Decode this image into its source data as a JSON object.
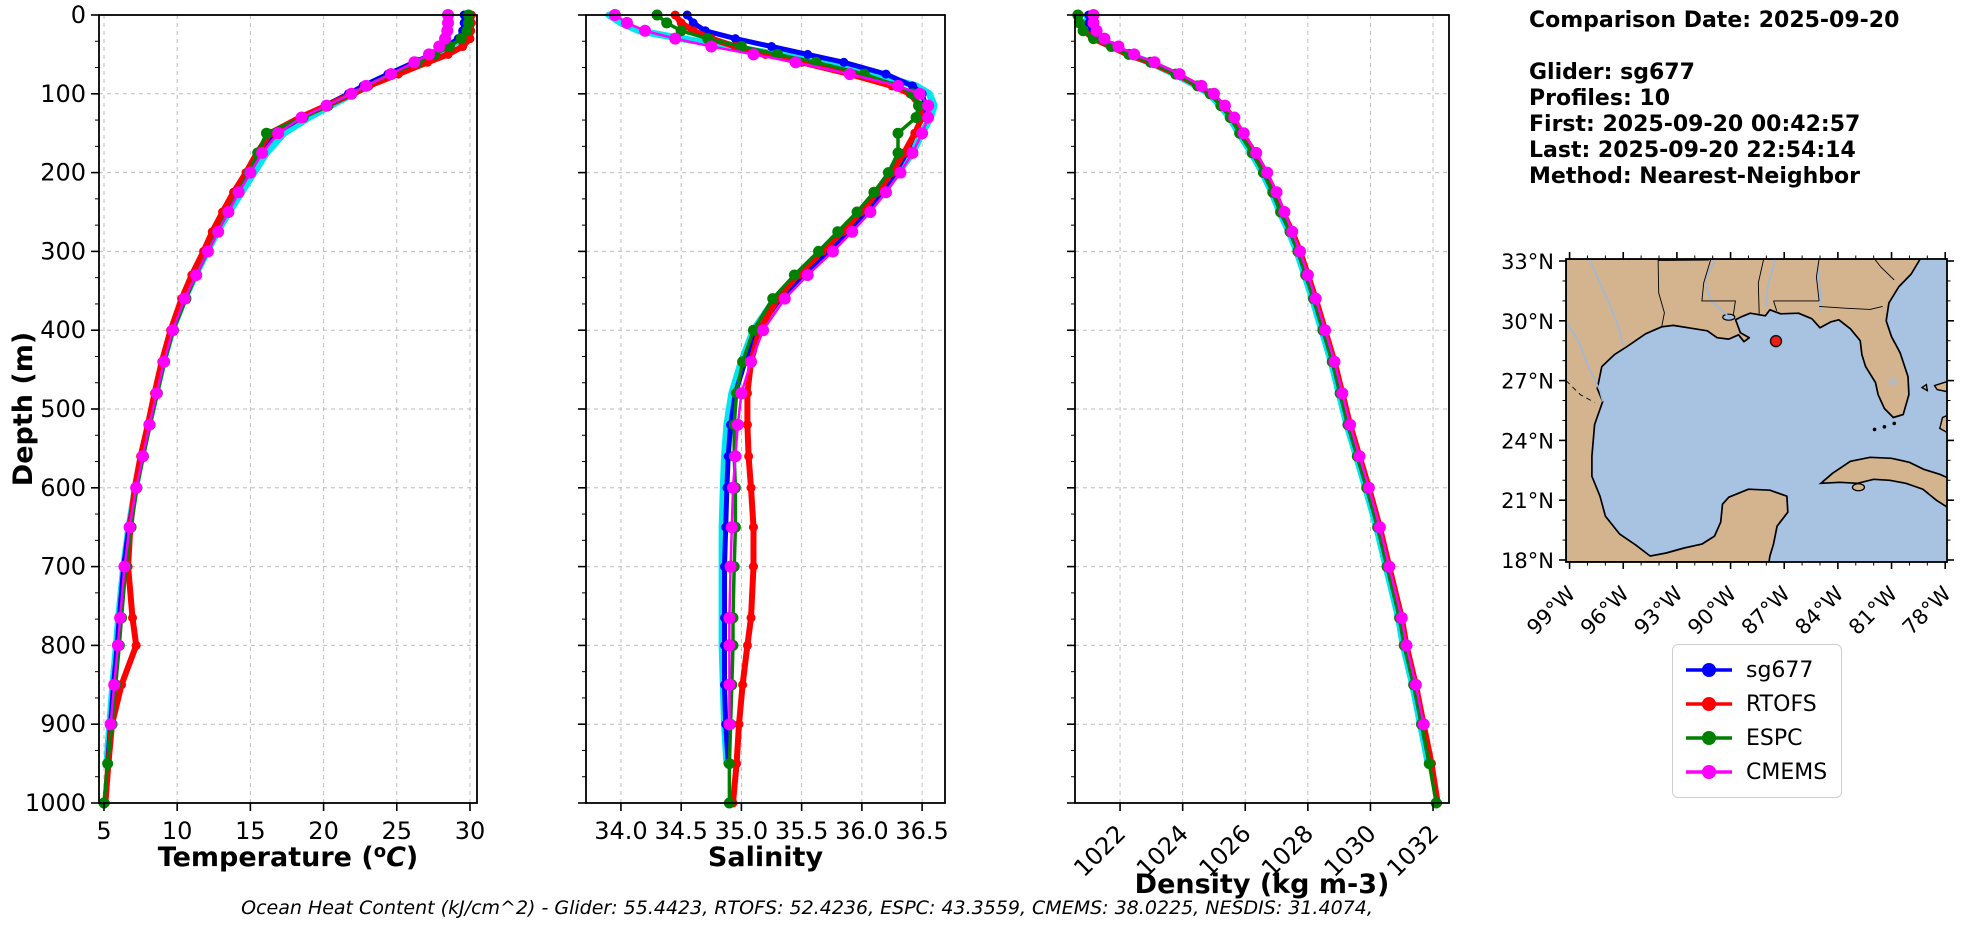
{
  "info_panel": {
    "comparison_date": "Comparison Date: 2025-09-20",
    "glider": "Glider: sg677",
    "profiles": "Profiles: 10",
    "first": "First: 2025-09-20 00:42:57",
    "last": "Last: 2025-09-20 22:54:14",
    "method": "Method: Nearest-Neighbor"
  },
  "caption": "Ocean Heat Content (kJ/cm^2) - Glider: 55.4423,  RTOFS: 52.4236,  ESPC: 43.3559,  CMEMS: 38.0225,  NESDIS: 31.4074,",
  "ocean_heat_content": {
    "units": "kJ/cm^2",
    "glider": 55.4423,
    "rtofs": 52.4236,
    "espc": 43.3559,
    "cmems": 38.0225,
    "nesdis": 31.4074
  },
  "legend": {
    "entries": [
      {
        "label": "sg677",
        "color": "#0000ff"
      },
      {
        "label": "RTOFS",
        "color": "#ff0000"
      },
      {
        "label": "ESPC",
        "color": "#008000"
      },
      {
        "label": "CMEMS",
        "color": "#ff00ff"
      }
    ]
  },
  "colors": {
    "raw_glider": "#00e5ee",
    "sg677": "#0000ff",
    "rtofs": "#ff0000",
    "espc": "#008000",
    "cmems": "#ff00ff",
    "grid": "#bdbdbd",
    "land": "#d3b48e",
    "ocean": "#a8c2e2",
    "lake_gray": "#b9b9b9",
    "river": "#9db9dd",
    "marker_red": "#ee1c12"
  },
  "chart_data": [
    {
      "id": "temperature",
      "type": "line",
      "xlabel": "Temperature (°C)",
      "ylabel": "Depth (m)",
      "xlim": [
        4.66,
        30.48
      ],
      "ylim": [
        0,
        1000
      ],
      "xticks": [
        5,
        10,
        15,
        20,
        25,
        30
      ],
      "xtick_labels": [
        "5",
        "10",
        "15",
        "20",
        "25",
        "30"
      ],
      "yticks": [
        0,
        100,
        200,
        300,
        400,
        500,
        600,
        700,
        800,
        900,
        1000
      ],
      "ytick_labels": [
        "0",
        "100",
        "200",
        "300",
        "400",
        "500",
        "600",
        "700",
        "800",
        "900",
        "1000"
      ],
      "xtick_rotation": 0,
      "show_ytick_labels": true,
      "grid": true,
      "depths": [
        0,
        10,
        20,
        30,
        40,
        50,
        60,
        75,
        90,
        100,
        115,
        130,
        150,
        175,
        200,
        225,
        250,
        275,
        300,
        330,
        360,
        400,
        440,
        480,
        520,
        560,
        600,
        650,
        700,
        765,
        800,
        850,
        900,
        950,
        1000
      ],
      "series": [
        {
          "name": "glider-raw",
          "color": "#00e5ee",
          "width": 7,
          "marker": 0,
          "values": [
            29.8,
            29.8,
            29.7,
            29.4,
            28.6,
            27.6,
            26.5,
            24.8,
            23.0,
            22.0,
            20.5,
            19.0,
            17.3,
            16.1,
            15.25,
            14.4,
            13.55,
            12.75,
            12.05,
            11.25,
            10.5,
            9.65,
            9.05,
            8.55,
            8.05,
            7.55,
            7.15,
            6.7,
            6.35,
            6.0,
            5.85,
            5.6,
            5.4,
            5.2,
            null
          ]
        },
        {
          "name": "sg677",
          "color": "#0000ff",
          "width": 5,
          "marker": 4.5,
          "values": [
            29.6,
            29.6,
            29.5,
            29.2,
            28.4,
            27.4,
            26.2,
            24.4,
            22.7,
            21.7,
            20.1,
            18.5,
            16.7,
            15.7,
            14.9,
            14.05,
            13.3,
            12.6,
            11.95,
            11.15,
            10.45,
            9.6,
            9.0,
            8.5,
            8.05,
            7.6,
            7.15,
            6.7,
            6.35,
            6.05,
            5.9,
            5.65,
            5.45,
            5.25,
            null
          ]
        },
        {
          "name": "RTOFS",
          "color": "#ff0000",
          "width": 6,
          "marker": 4.5,
          "values": [
            30.1,
            30.1,
            30.05,
            30.0,
            29.5,
            28.5,
            27.1,
            25.1,
            23.1,
            22.0,
            20.2,
            18.4,
            16.35,
            15.45,
            14.7,
            13.85,
            13.1,
            12.4,
            11.8,
            11.0,
            10.3,
            9.55,
            8.95,
            8.45,
            8.0,
            7.5,
            7.1,
            6.8,
            6.65,
            6.95,
            7.2,
            6.2,
            5.55,
            5.3,
            5.1
          ]
        },
        {
          "name": "ESPC",
          "color": "#008000",
          "width": 3.5,
          "marker": 5.5,
          "values": [
            29.9,
            29.9,
            29.8,
            29.4,
            28.6,
            27.6,
            26.4,
            24.6,
            22.9,
            21.9,
            20.3,
            18.6,
            16.1,
            15.5,
            14.9,
            14.15,
            13.45,
            12.75,
            12.1,
            11.3,
            10.6,
            9.75,
            9.15,
            8.65,
            8.15,
            7.7,
            7.25,
            6.85,
            6.5,
            6.2,
            6.05,
            5.8,
            5.55,
            5.25,
            5.0
          ]
        },
        {
          "name": "CMEMS",
          "color": "#ff00ff",
          "width": 2.5,
          "marker": 6,
          "values": [
            28.5,
            28.5,
            28.45,
            28.3,
            27.9,
            27.2,
            26.2,
            24.6,
            22.9,
            21.9,
            20.2,
            18.5,
            16.9,
            15.8,
            15.0,
            14.2,
            13.5,
            12.8,
            12.1,
            11.3,
            10.5,
            9.7,
            9.1,
            8.6,
            8.1,
            7.65,
            7.2,
            6.75,
            6.4,
            6.1,
            5.95,
            5.7,
            5.45,
            null,
            null
          ]
        }
      ]
    },
    {
      "id": "salinity",
      "type": "line",
      "xlabel": "Salinity",
      "ylabel": "",
      "xlim": [
        33.71,
        36.69
      ],
      "ylim": [
        0,
        1000
      ],
      "xticks": [
        34.0,
        34.5,
        35.0,
        35.5,
        36.0,
        36.5
      ],
      "xtick_labels": [
        "34.0",
        "34.5",
        "35.0",
        "35.5",
        "36.0",
        "36.5"
      ],
      "yticks": [
        0,
        100,
        200,
        300,
        400,
        500,
        600,
        700,
        800,
        900,
        1000
      ],
      "ytick_labels": [],
      "xtick_rotation": 0,
      "show_ytick_labels": false,
      "grid": true,
      "depths": [
        0,
        10,
        20,
        30,
        40,
        50,
        60,
        75,
        90,
        100,
        115,
        130,
        150,
        175,
        200,
        225,
        250,
        275,
        300,
        330,
        360,
        400,
        440,
        480,
        520,
        560,
        600,
        650,
        700,
        765,
        800,
        850,
        900,
        950,
        1000
      ],
      "series": [
        {
          "name": "glider-raw",
          "color": "#00e5ee",
          "width": 7,
          "marker": 0,
          "values": [
            33.9,
            34.0,
            34.15,
            34.5,
            34.9,
            35.3,
            35.7,
            36.1,
            36.45,
            36.56,
            36.6,
            36.57,
            36.5,
            36.42,
            36.3,
            36.17,
            36.02,
            35.86,
            35.7,
            35.48,
            35.28,
            35.1,
            35.0,
            34.92,
            34.88,
            34.86,
            34.85,
            34.84,
            34.84,
            34.84,
            34.84,
            34.85,
            34.86,
            34.88,
            null
          ]
        },
        {
          "name": "sg677",
          "color": "#0000ff",
          "width": 5,
          "marker": 4.5,
          "values": [
            34.55,
            34.6,
            34.7,
            34.95,
            35.25,
            35.55,
            35.85,
            36.2,
            36.42,
            36.5,
            36.53,
            36.5,
            36.44,
            36.37,
            36.28,
            36.16,
            36.03,
            35.88,
            35.72,
            35.51,
            35.32,
            35.14,
            35.03,
            34.95,
            34.91,
            34.89,
            34.88,
            34.87,
            34.86,
            34.86,
            34.86,
            34.86,
            34.87,
            34.89,
            null
          ]
        },
        {
          "name": "RTOFS",
          "color": "#ff0000",
          "width": 6,
          "marker": 4.5,
          "values": [
            34.45,
            34.5,
            34.6,
            34.75,
            34.95,
            35.2,
            35.5,
            35.9,
            36.25,
            36.4,
            36.48,
            36.5,
            36.44,
            36.35,
            36.25,
            36.13,
            35.99,
            35.84,
            35.67,
            35.47,
            35.3,
            35.15,
            35.08,
            35.05,
            35.05,
            35.06,
            35.08,
            35.1,
            35.1,
            35.08,
            35.05,
            35.01,
            34.98,
            34.96,
            34.93
          ]
        },
        {
          "name": "ESPC",
          "color": "#008000",
          "width": 3.5,
          "marker": 5.5,
          "values": [
            34.3,
            34.38,
            34.5,
            34.72,
            35.0,
            35.3,
            35.62,
            36.02,
            36.3,
            36.42,
            36.47,
            36.45,
            36.3,
            36.3,
            36.22,
            36.1,
            35.96,
            35.8,
            35.64,
            35.44,
            35.26,
            35.1,
            35.01,
            34.96,
            34.94,
            34.94,
            34.95,
            34.95,
            34.94,
            34.93,
            34.93,
            34.92,
            34.91,
            34.9,
            34.9
          ]
        },
        {
          "name": "CMEMS",
          "color": "#ff00ff",
          "width": 2.5,
          "marker": 6,
          "values": [
            33.95,
            34.05,
            34.2,
            34.45,
            34.75,
            35.1,
            35.45,
            35.9,
            36.3,
            36.48,
            36.55,
            36.55,
            36.5,
            36.42,
            36.32,
            36.2,
            36.07,
            35.92,
            35.76,
            35.55,
            35.36,
            35.18,
            35.08,
            35.0,
            34.97,
            34.95,
            34.93,
            34.92,
            34.91,
            34.9,
            34.9,
            34.9,
            34.9,
            null,
            null
          ]
        }
      ]
    },
    {
      "id": "density",
      "type": "line",
      "xlabel": "Density (kg m-3)",
      "ylabel": "",
      "xlim": [
        1020.56,
        1032.51
      ],
      "ylim": [
        0,
        1000
      ],
      "xticks": [
        1022,
        1024,
        1026,
        1028,
        1030,
        1032
      ],
      "xtick_labels": [
        "1022",
        "1024",
        "1026",
        "1028",
        "1030",
        "1032"
      ],
      "yticks": [
        0,
        100,
        200,
        300,
        400,
        500,
        600,
        700,
        800,
        900,
        1000
      ],
      "ytick_labels": [],
      "xtick_rotation": 45,
      "show_ytick_labels": false,
      "grid": true,
      "depths": [
        0,
        10,
        20,
        30,
        40,
        50,
        60,
        75,
        90,
        100,
        115,
        130,
        150,
        175,
        200,
        225,
        250,
        275,
        300,
        330,
        360,
        400,
        440,
        480,
        520,
        560,
        600,
        650,
        700,
        765,
        800,
        850,
        900,
        950,
        1000
      ],
      "series": [
        {
          "name": "glider-raw",
          "color": "#00e5ee",
          "width": 7,
          "marker": 0,
          "values": [
            1020.95,
            1020.95,
            1021.05,
            1021.3,
            1021.75,
            1022.25,
            1022.95,
            1023.75,
            1024.45,
            1024.85,
            1025.2,
            1025.5,
            1025.8,
            1026.2,
            1026.55,
            1026.85,
            1027.1,
            1027.4,
            1027.65,
            1027.9,
            1028.15,
            1028.45,
            1028.75,
            1029.0,
            1029.25,
            1029.55,
            1029.85,
            1030.2,
            1030.5,
            1030.9,
            1031.05,
            1031.35,
            1031.6,
            1031.85,
            null
          ]
        },
        {
          "name": "sg677",
          "color": "#0000ff",
          "width": 5,
          "marker": 4.5,
          "values": [
            1021.0,
            1021.0,
            1021.1,
            1021.35,
            1021.8,
            1022.3,
            1023.0,
            1023.8,
            1024.5,
            1024.9,
            1025.25,
            1025.55,
            1025.85,
            1026.25,
            1026.6,
            1026.9,
            1027.15,
            1027.45,
            1027.7,
            1027.95,
            1028.2,
            1028.5,
            1028.8,
            1029.05,
            1029.3,
            1029.6,
            1029.9,
            1030.25,
            1030.55,
            1030.95,
            1031.1,
            1031.4,
            1031.65,
            1031.9,
            null
          ]
        },
        {
          "name": "RTOFS",
          "color": "#ff0000",
          "width": 6,
          "marker": 4.5,
          "values": [
            1020.7,
            1020.72,
            1020.85,
            1021.15,
            1021.7,
            1022.25,
            1022.95,
            1023.8,
            1024.5,
            1024.9,
            1025.3,
            1025.6,
            1025.9,
            1026.3,
            1026.65,
            1026.95,
            1027.2,
            1027.5,
            1027.75,
            1028.0,
            1028.25,
            1028.55,
            1028.85,
            1029.1,
            1029.35,
            1029.65,
            1029.95,
            1030.3,
            1030.6,
            1031.0,
            1031.15,
            1031.45,
            1031.7,
            1031.95,
            1032.15
          ]
        },
        {
          "name": "ESPC",
          "color": "#008000",
          "width": 3.5,
          "marker": 5.5,
          "values": [
            1020.65,
            1020.7,
            1020.82,
            1021.15,
            1021.72,
            1022.28,
            1022.98,
            1023.78,
            1024.48,
            1024.88,
            1025.22,
            1025.52,
            1025.82,
            1026.22,
            1026.58,
            1026.88,
            1027.13,
            1027.43,
            1027.68,
            1027.93,
            1028.18,
            1028.48,
            1028.78,
            1029.03,
            1029.28,
            1029.58,
            1029.88,
            1030.23,
            1030.53,
            1030.93,
            1031.08,
            1031.38,
            1031.63,
            1031.88,
            1032.1
          ]
        },
        {
          "name": "CMEMS",
          "color": "#ff00ff",
          "width": 2.5,
          "marker": 6,
          "values": [
            1021.15,
            1021.15,
            1021.25,
            1021.5,
            1021.95,
            1022.45,
            1023.1,
            1023.9,
            1024.6,
            1025.0,
            1025.35,
            1025.65,
            1025.95,
            1026.35,
            1026.7,
            1027.0,
            1027.25,
            1027.5,
            1027.75,
            1028.0,
            1028.25,
            1028.55,
            1028.85,
            1029.1,
            1029.35,
            1029.65,
            1029.95,
            1030.3,
            1030.6,
            1031.0,
            1031.15,
            1031.45,
            1031.7,
            null,
            null
          ]
        }
      ]
    },
    {
      "id": "map",
      "type": "map",
      "extent": {
        "lon_min": -99.2,
        "lon_max": -77.9,
        "lat_min": 17.9,
        "lat_max": 33.1
      },
      "lat_ticks": [
        33,
        30,
        27,
        24,
        21,
        18
      ],
      "lat_tick_labels": [
        "33°N",
        "30°N",
        "27°N",
        "24°N",
        "21°N",
        "18°N"
      ],
      "lon_ticks": [
        -99,
        -96,
        -93,
        -90,
        -87,
        -84,
        -81,
        -78
      ],
      "lon_tick_labels": [
        "99°W",
        "96°W",
        "93°W",
        "90°W",
        "87°W",
        "84°W",
        "81°W",
        "78°W"
      ],
      "marker": {
        "lon": -87.46,
        "lat": 28.98,
        "color": "#ee1c12"
      }
    }
  ]
}
